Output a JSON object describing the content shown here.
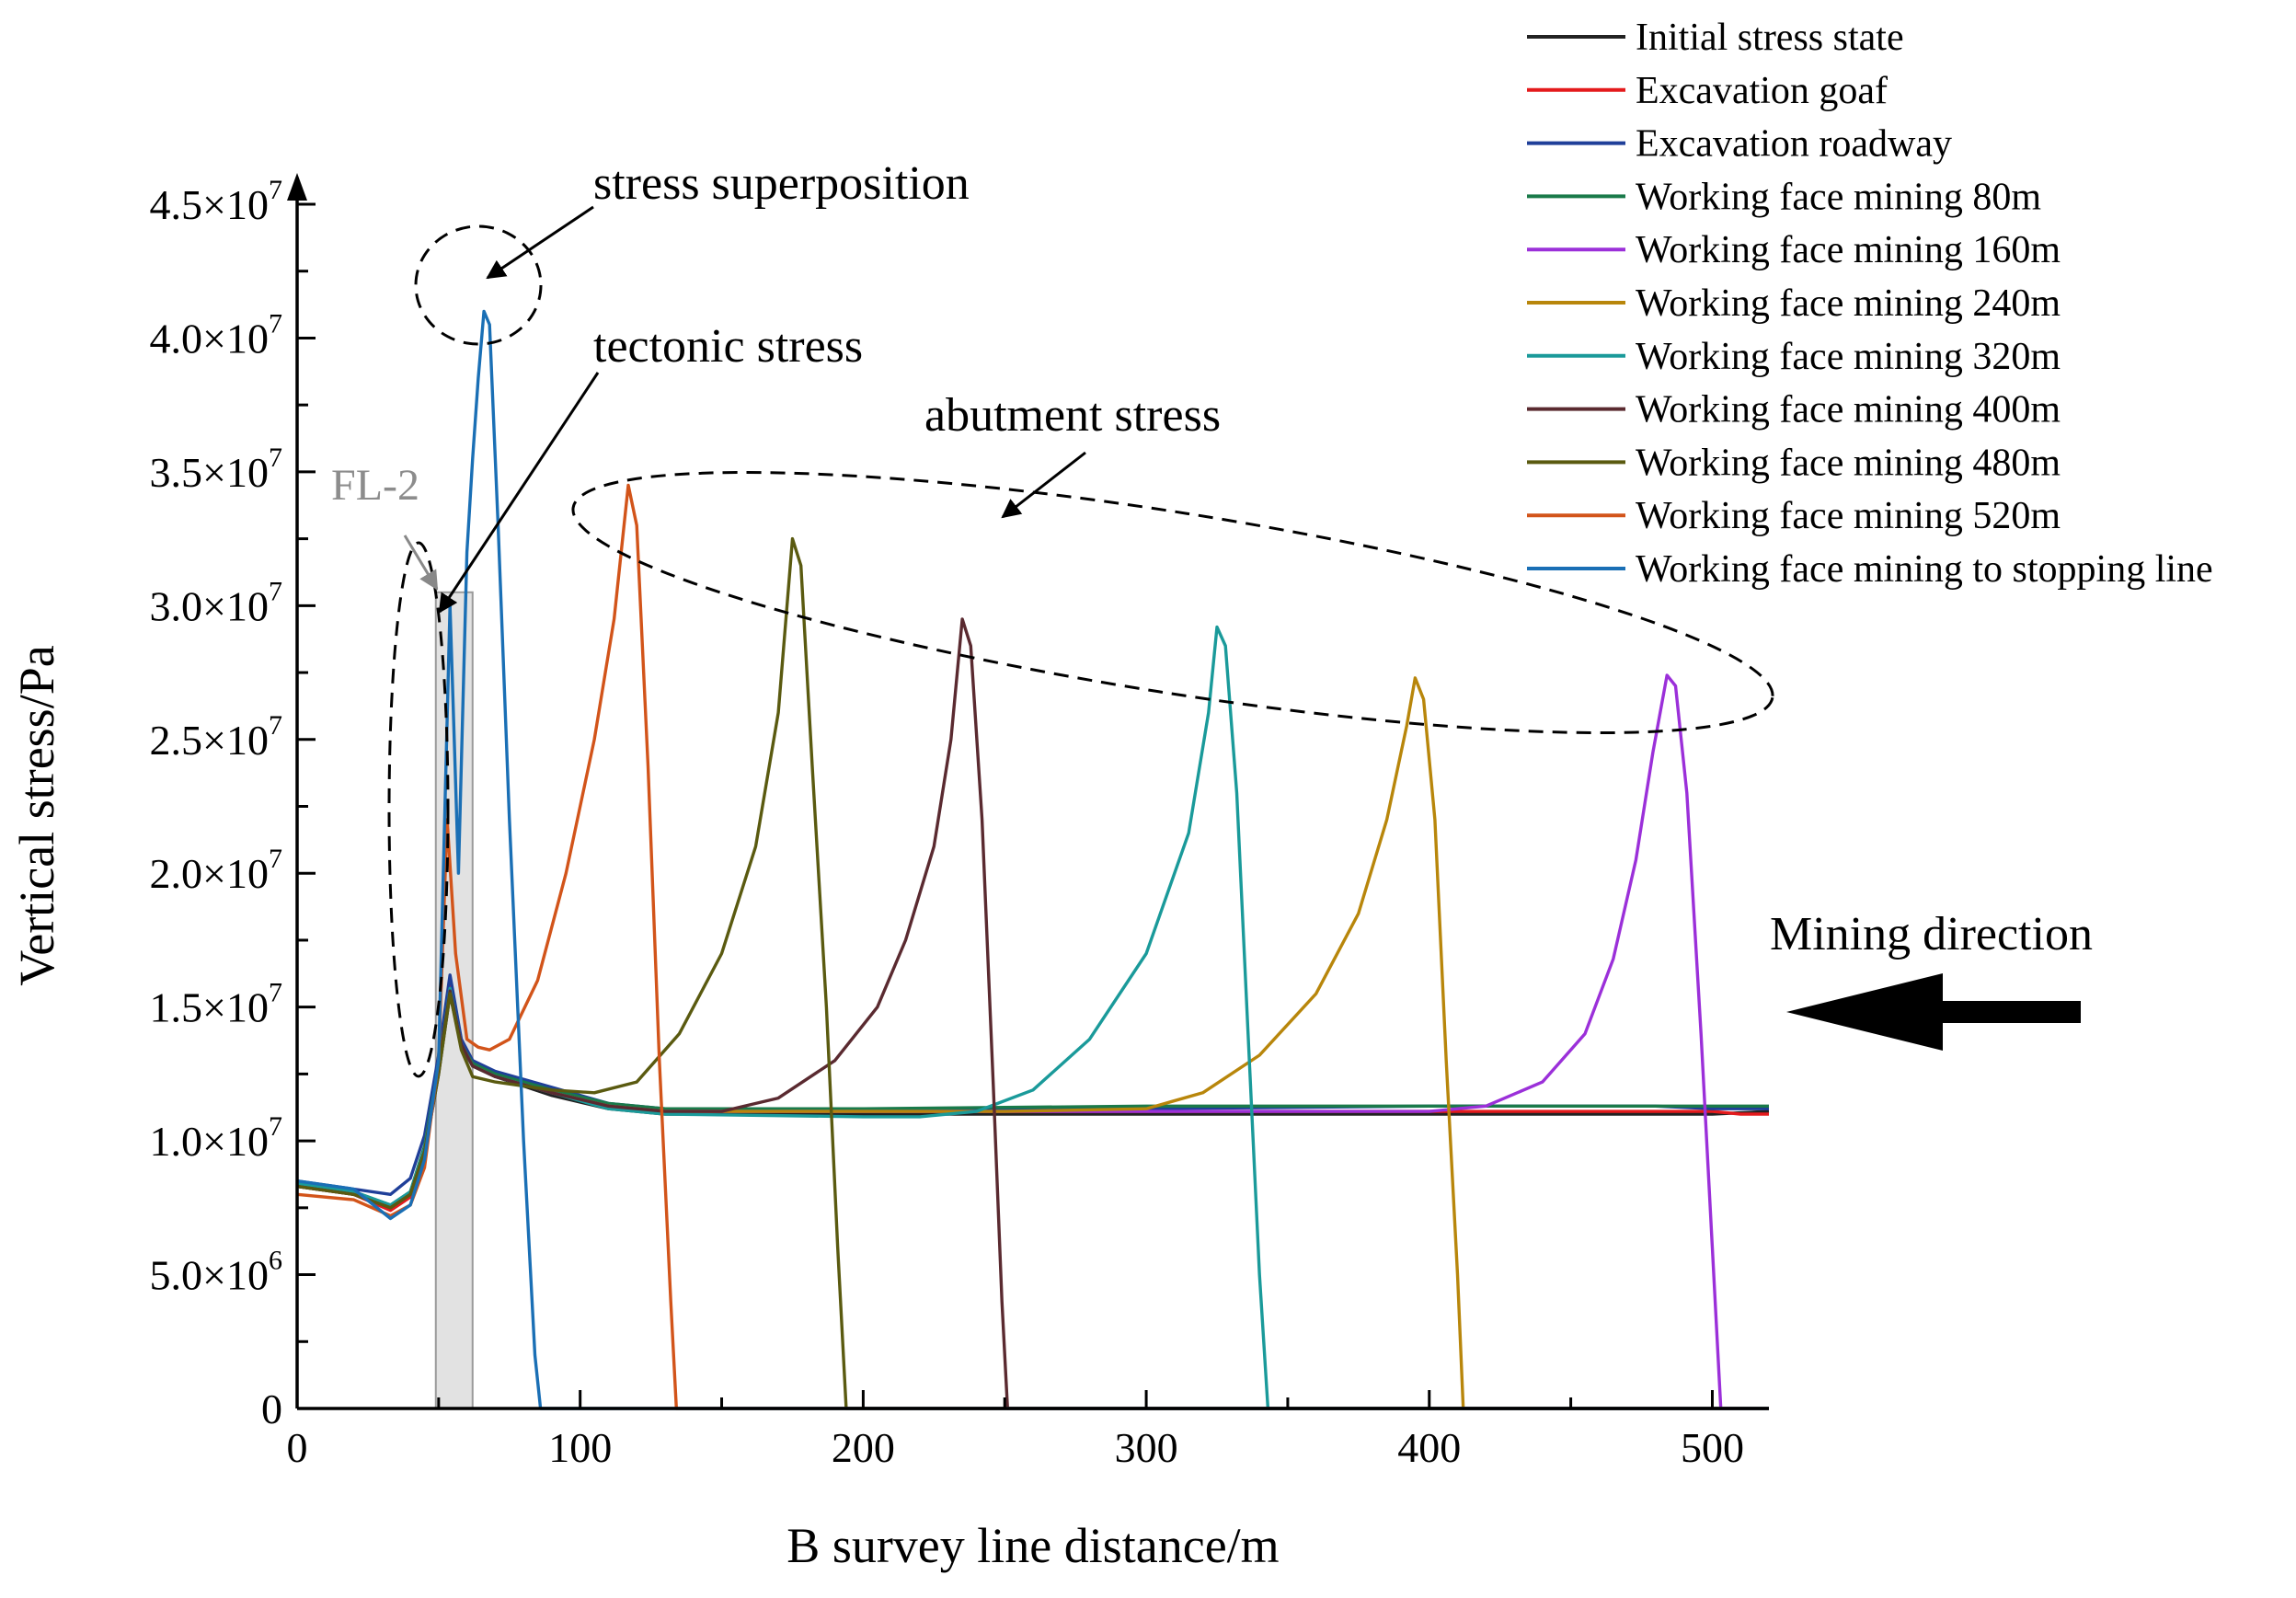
{
  "chart_data": {
    "type": "line",
    "xlabel": "B survey line distance/m",
    "ylabel": "Vertical stress/Pa",
    "xlim": [
      0,
      520
    ],
    "ylim": [
      0,
      45000000
    ],
    "x_ticks": [
      {
        "value": 0,
        "label": "0"
      },
      {
        "value": 100,
        "label": "100"
      },
      {
        "value": 200,
        "label": "200"
      },
      {
        "value": 300,
        "label": "300"
      },
      {
        "value": 400,
        "label": "400"
      },
      {
        "value": 500,
        "label": "500"
      }
    ],
    "y_ticks": [
      {
        "value": 0,
        "mant": "0",
        "exp": ""
      },
      {
        "value": 5000000,
        "mant": "5.0×10",
        "exp": "6"
      },
      {
        "value": 10000000,
        "mant": "1.0×10",
        "exp": "7"
      },
      {
        "value": 15000000,
        "mant": "1.5×10",
        "exp": "7"
      },
      {
        "value": 20000000,
        "mant": "2.0×10",
        "exp": "7"
      },
      {
        "value": 25000000,
        "mant": "2.5×10",
        "exp": "7"
      },
      {
        "value": 30000000,
        "mant": "3.0×10",
        "exp": "7"
      },
      {
        "value": 35000000,
        "mant": "3.5×10",
        "exp": "7"
      },
      {
        "value": 40000000,
        "mant": "4.0×10",
        "exp": "7"
      },
      {
        "value": 45000000,
        "mant": "4.5×10",
        "exp": "7"
      }
    ],
    "fault_zone": {
      "label": "FL-2",
      "x_range": [
        49,
        62
      ],
      "y_top": 30500000
    },
    "series": [
      {
        "name": "Initial stress state",
        "color": "#222222",
        "points": [
          [
            0,
            8400000.0
          ],
          [
            20,
            8100000.0
          ],
          [
            33,
            7500000.0
          ],
          [
            40,
            8000000.0
          ],
          [
            45,
            9500000.0
          ],
          [
            50,
            12500000.0
          ],
          [
            54,
            15500000.0
          ],
          [
            58,
            13500000.0
          ],
          [
            62,
            12800000.0
          ],
          [
            70,
            12400000.0
          ],
          [
            90,
            11700000.0
          ],
          [
            110,
            11200000.0
          ],
          [
            130,
            11000000.0
          ],
          [
            200,
            11000000.0
          ],
          [
            300,
            11000000.0
          ],
          [
            400,
            11000000.0
          ],
          [
            500,
            11000000.0
          ],
          [
            520,
            11100000.0
          ]
        ]
      },
      {
        "name": "Excavation goaf",
        "color": "#e41a1c",
        "points": [
          [
            0,
            8300000.0
          ],
          [
            20,
            8000000.0
          ],
          [
            33,
            7400000.0
          ],
          [
            40,
            7900000.0
          ],
          [
            45,
            9500000.0
          ],
          [
            50,
            12600000.0
          ],
          [
            54,
            15800000.0
          ],
          [
            58,
            13600000.0
          ],
          [
            62,
            12900000.0
          ],
          [
            70,
            12500000.0
          ],
          [
            90,
            11800000.0
          ],
          [
            110,
            11300000.0
          ],
          [
            130,
            11100000.0
          ],
          [
            200,
            11100000.0
          ],
          [
            300,
            11100000.0
          ],
          [
            400,
            11100000.0
          ],
          [
            500,
            11100000.0
          ],
          [
            510,
            11000000.0
          ],
          [
            520,
            11000000.0
          ]
        ]
      },
      {
        "name": "Excavation roadway",
        "color": "#1f3f99",
        "points": [
          [
            0,
            8500000.0
          ],
          [
            20,
            8200000.0
          ],
          [
            33,
            8000000.0
          ],
          [
            40,
            8600000.0
          ],
          [
            45,
            10200000.0
          ],
          [
            50,
            13200000.0
          ],
          [
            54,
            16200000.0
          ],
          [
            58,
            13800000.0
          ],
          [
            62,
            13000000.0
          ],
          [
            70,
            12600000.0
          ],
          [
            90,
            12000000.0
          ],
          [
            110,
            11400000.0
          ],
          [
            130,
            11200000.0
          ],
          [
            200,
            11200000.0
          ],
          [
            300,
            11200000.0
          ],
          [
            400,
            11300000.0
          ],
          [
            480,
            11300000.0
          ],
          [
            500,
            11200000.0
          ],
          [
            520,
            11200000.0
          ]
        ]
      },
      {
        "name": "Working face mining 80m",
        "color": "#1a7a4a",
        "points": [
          [
            0,
            8400000.0
          ],
          [
            20,
            8100000.0
          ],
          [
            33,
            7600000.0
          ],
          [
            40,
            8100000.0
          ],
          [
            45,
            9800000.0
          ],
          [
            50,
            12800000.0
          ],
          [
            54,
            15600000.0
          ],
          [
            58,
            13600000.0
          ],
          [
            62,
            12900000.0
          ],
          [
            70,
            12500000.0
          ],
          [
            90,
            11900000.0
          ],
          [
            110,
            11400000.0
          ],
          [
            130,
            11200000.0
          ],
          [
            200,
            11200000.0
          ],
          [
            300,
            11300000.0
          ],
          [
            400,
            11300000.0
          ],
          [
            500,
            11300000.0
          ],
          [
            520,
            11300000.0
          ]
        ]
      },
      {
        "name": "Working face mining 160m",
        "color": "#9b30d9",
        "points": [
          [
            0,
            8300000.0
          ],
          [
            20,
            8000000.0
          ],
          [
            33,
            7500000.0
          ],
          [
            40,
            8000000.0
          ],
          [
            45,
            9600000.0
          ],
          [
            50,
            12700000.0
          ],
          [
            54,
            15600000.0
          ],
          [
            58,
            13600000.0
          ],
          [
            62,
            12800000.0
          ],
          [
            70,
            12400000.0
          ],
          [
            90,
            11800000.0
          ],
          [
            110,
            11300000.0
          ],
          [
            130,
            11100000.0
          ],
          [
            300,
            11100000.0
          ],
          [
            400,
            11100000.0
          ],
          [
            420,
            11300000.0
          ],
          [
            440,
            12200000.0
          ],
          [
            455,
            14000000.0
          ],
          [
            465,
            16800000.0
          ],
          [
            473,
            20500000.0
          ],
          [
            479,
            24500000.0
          ],
          [
            484,
            27400000.0
          ],
          [
            487,
            27000000.0
          ],
          [
            491,
            23000000.0
          ],
          [
            496,
            14000000.0
          ],
          [
            500,
            6000000.0
          ],
          [
            503,
            0
          ],
          [
            520,
            0
          ]
        ]
      },
      {
        "name": "Working face mining 240m",
        "color": "#b8860b",
        "points": [
          [
            0,
            8300000.0
          ],
          [
            20,
            8000000.0
          ],
          [
            33,
            7500000.0
          ],
          [
            40,
            8000000.0
          ],
          [
            45,
            9600000.0
          ],
          [
            50,
            12700000.0
          ],
          [
            54,
            15600000.0
          ],
          [
            58,
            13600000.0
          ],
          [
            62,
            12800000.0
          ],
          [
            70,
            12400000.0
          ],
          [
            90,
            11800000.0
          ],
          [
            110,
            11300000.0
          ],
          [
            130,
            11100000.0
          ],
          [
            250,
            11100000.0
          ],
          [
            300,
            11200000.0
          ],
          [
            320,
            11800000.0
          ],
          [
            340,
            13200000.0
          ],
          [
            360,
            15500000.0
          ],
          [
            375,
            18500000.0
          ],
          [
            385,
            22000000.0
          ],
          [
            392,
            25500000.0
          ],
          [
            395,
            27300000.0
          ],
          [
            398,
            26500000.0
          ],
          [
            402,
            22000000.0
          ],
          [
            406,
            13000000.0
          ],
          [
            410,
            5000000.0
          ],
          [
            412,
            0
          ],
          [
            520,
            0
          ]
        ]
      },
      {
        "name": "Working face mining 320m",
        "color": "#1a9a9a",
        "points": [
          [
            0,
            8400000.0
          ],
          [
            20,
            8100000.0
          ],
          [
            33,
            7600000.0
          ],
          [
            40,
            8100000.0
          ],
          [
            45,
            9700000.0
          ],
          [
            50,
            12700000.0
          ],
          [
            54,
            15700000.0
          ],
          [
            58,
            13600000.0
          ],
          [
            62,
            12800000.0
          ],
          [
            70,
            12400000.0
          ],
          [
            90,
            11800000.0
          ],
          [
            110,
            11200000.0
          ],
          [
            130,
            11000000.0
          ],
          [
            200,
            10900000.0
          ],
          [
            220,
            10900000.0
          ],
          [
            240,
            11100000.0
          ],
          [
            260,
            11900000.0
          ],
          [
            280,
            13800000.0
          ],
          [
            300,
            17000000.0
          ],
          [
            315,
            21500000.0
          ],
          [
            322,
            26000000.0
          ],
          [
            325,
            29200000.0
          ],
          [
            328,
            28500000.0
          ],
          [
            332,
            23000000.0
          ],
          [
            336,
            14000000.0
          ],
          [
            340,
            5000000.0
          ],
          [
            343,
            0
          ],
          [
            520,
            0
          ]
        ]
      },
      {
        "name": "Working face mining 400m",
        "color": "#5a2a30",
        "points": [
          [
            0,
            8300000.0
          ],
          [
            20,
            8000000.0
          ],
          [
            33,
            7500000.0
          ],
          [
            40,
            8000000.0
          ],
          [
            45,
            9600000.0
          ],
          [
            50,
            12700000.0
          ],
          [
            54,
            15600000.0
          ],
          [
            58,
            13600000.0
          ],
          [
            62,
            12800000.0
          ],
          [
            70,
            12400000.0
          ],
          [
            90,
            11800000.0
          ],
          [
            110,
            11300000.0
          ],
          [
            130,
            11100000.0
          ],
          [
            150,
            11100000.0
          ],
          [
            170,
            11600000.0
          ],
          [
            190,
            13000000.0
          ],
          [
            205,
            15000000.0
          ],
          [
            215,
            17500000.0
          ],
          [
            225,
            21000000.0
          ],
          [
            231,
            25000000.0
          ],
          [
            235,
            29500000.0
          ],
          [
            238,
            28500000.0
          ],
          [
            242,
            22000000.0
          ],
          [
            246,
            12000000.0
          ],
          [
            249,
            4000000.0
          ],
          [
            251,
            0
          ],
          [
            520,
            0
          ]
        ]
      },
      {
        "name": "Working face mining 480m",
        "color": "#5a5a10",
        "points": [
          [
            0,
            8300000.0
          ],
          [
            20,
            8000000.0
          ],
          [
            33,
            7500000.0
          ],
          [
            40,
            8000000.0
          ],
          [
            45,
            9600000.0
          ],
          [
            50,
            12500000.0
          ],
          [
            54,
            15500000.0
          ],
          [
            58,
            13400000.0
          ],
          [
            62,
            12400000.0
          ],
          [
            70,
            12200000.0
          ],
          [
            90,
            11900000.0
          ],
          [
            105,
            11800000.0
          ],
          [
            120,
            12200000.0
          ],
          [
            135,
            14000000.0
          ],
          [
            150,
            17000000.0
          ],
          [
            162,
            21000000.0
          ],
          [
            170,
            26000000.0
          ],
          [
            175,
            32500000.0
          ],
          [
            178,
            31500000.0
          ],
          [
            182,
            24000000.0
          ],
          [
            187,
            15000000.0
          ],
          [
            191,
            6000000.0
          ],
          [
            194,
            0
          ],
          [
            520,
            0
          ]
        ]
      },
      {
        "name": "Working face mining 520m",
        "color": "#d2541a",
        "points": [
          [
            0,
            8000000.0
          ],
          [
            20,
            7800000.0
          ],
          [
            33,
            7200000.0
          ],
          [
            40,
            7600000.0
          ],
          [
            45,
            9000000.0
          ],
          [
            50,
            13000000.0
          ],
          [
            53,
            22000000.0
          ],
          [
            56,
            17000000.0
          ],
          [
            60,
            13800000.0
          ],
          [
            64,
            13500000.0
          ],
          [
            68,
            13400000.0
          ],
          [
            75,
            13800000.0
          ],
          [
            85,
            16000000.0
          ],
          [
            95,
            20000000.0
          ],
          [
            105,
            25000000.0
          ],
          [
            112,
            29500000.0
          ],
          [
            117,
            34500000.0
          ],
          [
            120,
            33000000.0
          ],
          [
            124,
            24000000.0
          ],
          [
            128,
            13000000.0
          ],
          [
            132,
            4000000.0
          ],
          [
            134,
            0
          ],
          [
            520,
            0
          ]
        ]
      },
      {
        "name": "Working face mining to stopping line",
        "color": "#1a6fb5",
        "points": [
          [
            0,
            8500000.0
          ],
          [
            20,
            8200000.0
          ],
          [
            33,
            7100000.0
          ],
          [
            40,
            7600000.0
          ],
          [
            45,
            9300000.0
          ],
          [
            50,
            13000000.0
          ],
          [
            54,
            30000000.0
          ],
          [
            57,
            20000000.0
          ],
          [
            60,
            32000000.0
          ],
          [
            62,
            35500000.0
          ],
          [
            64,
            38500000.0
          ],
          [
            66,
            41000000.0
          ],
          [
            68,
            40500000.0
          ],
          [
            71,
            33000000.0
          ],
          [
            75,
            22000000.0
          ],
          [
            80,
            10000000.0
          ],
          [
            84,
            2000000.0
          ],
          [
            86,
            0
          ],
          [
            520,
            0
          ]
        ]
      }
    ],
    "annotations": [
      {
        "id": "stress-superposition",
        "text": "stress superposition"
      },
      {
        "id": "tectonic-stress",
        "text": "tectonic stress"
      },
      {
        "id": "abutment-stress",
        "text": "abutment stress"
      },
      {
        "id": "mining-direction",
        "text": "Mining direction"
      }
    ]
  }
}
